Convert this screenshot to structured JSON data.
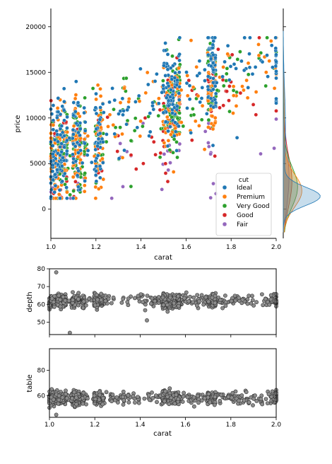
{
  "chart_data": [
    {
      "type": "scatter",
      "panel": "joint",
      "xlabel": "carat",
      "ylabel": "price",
      "xlim": [
        1.0,
        2.0
      ],
      "ylim": [
        -3200,
        22000
      ],
      "xticks": [
        "1.0",
        "1.2",
        "1.4",
        "1.6",
        "1.8",
        "2.0"
      ],
      "yticks": [
        "0",
        "5000",
        "10000",
        "15000",
        "20000"
      ],
      "grid": false,
      "legend": {
        "title": "cut",
        "placement": "lower-right",
        "entries": [
          "Ideal",
          "Premium",
          "Very Good",
          "Good",
          "Fair"
        ]
      },
      "series": [
        {
          "name": "Ideal",
          "color": "#1f77b4",
          "x": [
            1.0,
            1.01,
            1.02,
            1.05,
            1.1,
            1.15,
            1.2,
            1.25,
            1.3,
            1.4,
            1.5,
            1.51,
            1.55,
            1.6,
            1.7,
            1.75,
            1.8,
            1.9,
            2.0
          ],
          "y": [
            5000,
            5600,
            6100,
            6600,
            7200,
            7400,
            8300,
            9200,
            10000,
            11200,
            13000,
            12800,
            12500,
            14000,
            15000,
            15400,
            15500,
            16000,
            16400
          ]
        },
        {
          "name": "Premium",
          "color": "#ff7f0e",
          "x": [
            1.0,
            1.01,
            1.05,
            1.1,
            1.2,
            1.25,
            1.3,
            1.4,
            1.5,
            1.55,
            1.6,
            1.7,
            1.8,
            1.9,
            2.0
          ],
          "y": [
            5200,
            5400,
            6000,
            6500,
            7500,
            8200,
            9000,
            10500,
            11000,
            11500,
            12500,
            13000,
            14500,
            15000,
            15500
          ]
        },
        {
          "name": "Very Good",
          "color": "#2ca02c",
          "x": [
            1.0,
            1.01,
            1.05,
            1.1,
            1.2,
            1.3,
            1.4,
            1.5,
            1.6,
            1.7,
            1.8,
            1.9,
            2.0
          ],
          "y": [
            5100,
            5300,
            5900,
            6300,
            7300,
            8500,
            10000,
            10800,
            12000,
            13000,
            14000,
            14800,
            15200
          ]
        },
        {
          "name": "Good",
          "color": "#d62728",
          "x": [
            1.0,
            1.01,
            1.05,
            1.1,
            1.2,
            1.3,
            1.5,
            1.6,
            1.7,
            1.8,
            1.9,
            2.0
          ],
          "y": [
            4800,
            5000,
            5500,
            6000,
            6800,
            7800,
            9500,
            10500,
            11500,
            12500,
            13500,
            14000
          ]
        },
        {
          "name": "Fair",
          "color": "#9467bd",
          "x": [
            1.0,
            1.01,
            1.05,
            1.1,
            1.2,
            1.3,
            1.5,
            1.7,
            1.9,
            2.0
          ],
          "y": [
            3800,
            4200,
            4500,
            5000,
            5200,
            5500,
            6500,
            7500,
            8000,
            8500
          ]
        }
      ]
    },
    {
      "type": "scatter",
      "panel": "depth",
      "xlabel": "",
      "ylabel": "depth",
      "xlim": [
        1.0,
        2.0
      ],
      "ylim": [
        43,
        80
      ],
      "yticks": [
        "50",
        "60",
        "70",
        "80"
      ],
      "color": "#8c8c8c",
      "x": [
        1.0,
        1.02,
        1.05,
        1.1,
        1.15,
        1.2,
        1.3,
        1.4,
        1.5,
        1.51,
        1.6,
        1.7,
        1.8,
        1.9,
        2.0,
        1.03,
        1.09,
        1.43
      ],
      "y": [
        61.5,
        62.0,
        61.8,
        62.2,
        61.9,
        61.8,
        62.0,
        61.7,
        62.1,
        61.5,
        61.9,
        62.0,
        62.1,
        62.2,
        62.0,
        78,
        44,
        51
      ]
    },
    {
      "type": "scatter",
      "panel": "table",
      "xlabel": "carat",
      "ylabel": "table",
      "xlim": [
        1.0,
        2.0
      ],
      "ylim": [
        43,
        97
      ],
      "xticks": [
        "1.0",
        "1.2",
        "1.4",
        "1.6",
        "1.8",
        "2.0"
      ],
      "yticks": [
        "60",
        "80"
      ],
      "color": "#8c8c8c",
      "x": [
        1.0,
        1.02,
        1.05,
        1.1,
        1.15,
        1.2,
        1.3,
        1.4,
        1.5,
        1.51,
        1.6,
        1.7,
        1.8,
        1.9,
        2.0,
        1.03
      ],
      "y": [
        57.5,
        58.0,
        57.8,
        58.2,
        57.9,
        58.0,
        58.1,
        57.7,
        58.3,
        59.0,
        58.0,
        57.9,
        58.1,
        58.0,
        58.2,
        45
      ]
    }
  ]
}
